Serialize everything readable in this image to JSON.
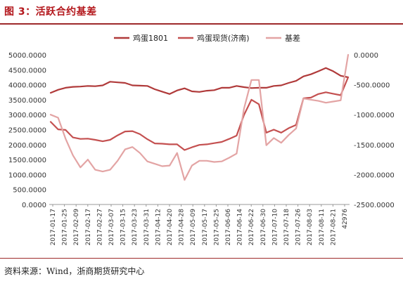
{
  "header": {
    "title": "图 3：活跃合约基差"
  },
  "source": {
    "text": "资料来源：Wind，浙商期货研究中心"
  },
  "chart_data": {
    "type": "line",
    "left_axis": {
      "ylim": [
        0,
        5000
      ],
      "ticks": [
        "0.0000",
        "500.0000",
        "1000.0000",
        "1500.0000",
        "2000.0000",
        "2500.0000",
        "3000.0000",
        "3500.0000",
        "4000.0000",
        "4500.0000",
        "5000.0000"
      ]
    },
    "right_axis": {
      "ylim": [
        -2500,
        0
      ],
      "ticks": [
        "-2500.0000",
        "-2000.0000",
        "-1500.0000",
        "-1000.0000",
        "-500.0000",
        "0.0000"
      ]
    },
    "x_tick_labels": [
      "2017-01-17",
      "2017-01-25",
      "2017-02-09",
      "2017-02-17",
      "2017-02-27",
      "2017-03-07",
      "2017-03-15",
      "2017-03-23",
      "2017-03-31",
      "2017-04-12",
      "2017-04-20",
      "2017-04-28",
      "2017-05-09",
      "2017-05-17",
      "2017-05-25",
      "2017-06-06",
      "2017-06-14",
      "2017-06-22",
      "2017-06-30",
      "2017-07-10",
      "2017-07-18",
      "2017-07-26",
      "2017-08-03",
      "2017-08-11",
      "2017-08-21",
      "42976"
    ],
    "legend_position": "top",
    "series": [
      {
        "name": "鸡蛋1801",
        "axis": "left",
        "color": "#b03a3a",
        "values": [
          3730,
          3830,
          3900,
          3930,
          3940,
          3960,
          3950,
          3980,
          4100,
          4080,
          4060,
          3980,
          3970,
          3960,
          3850,
          3770,
          3690,
          3810,
          3880,
          3780,
          3760,
          3800,
          3820,
          3900,
          3900,
          3960,
          3920,
          3890,
          3900,
          3900,
          3960,
          3980,
          4060,
          4130,
          4280,
          4350,
          4450,
          4560,
          4450,
          4300,
          4250
        ]
      },
      {
        "name": "鸡蛋现货(济南)",
        "axis": "left",
        "color": "#c45050",
        "values": [
          2760,
          2510,
          2490,
          2240,
          2190,
          2200,
          2160,
          2110,
          2160,
          2310,
          2440,
          2450,
          2350,
          2180,
          2040,
          2030,
          2010,
          2010,
          1820,
          1910,
          1990,
          2010,
          2050,
          2090,
          2190,
          2300,
          2990,
          3500,
          3350,
          2400,
          2500,
          2400,
          2550,
          2660,
          3550,
          3570,
          3690,
          3750,
          3700,
          3650,
          4250
        ]
      },
      {
        "name": "基差",
        "axis": "right",
        "color": "#e3a4a4",
        "values": [
          -1000,
          -1050,
          -1400,
          -1680,
          -1880,
          -1750,
          -1920,
          -1950,
          -1920,
          -1770,
          -1580,
          -1540,
          -1640,
          -1780,
          -1820,
          -1860,
          -1850,
          -1640,
          -2090,
          -1850,
          -1770,
          -1770,
          -1790,
          -1780,
          -1720,
          -1650,
          -900,
          -420,
          -420,
          -1510,
          -1390,
          -1470,
          -1340,
          -1230,
          -730,
          -750,
          -770,
          -800,
          -780,
          -760,
          0
        ]
      }
    ]
  }
}
